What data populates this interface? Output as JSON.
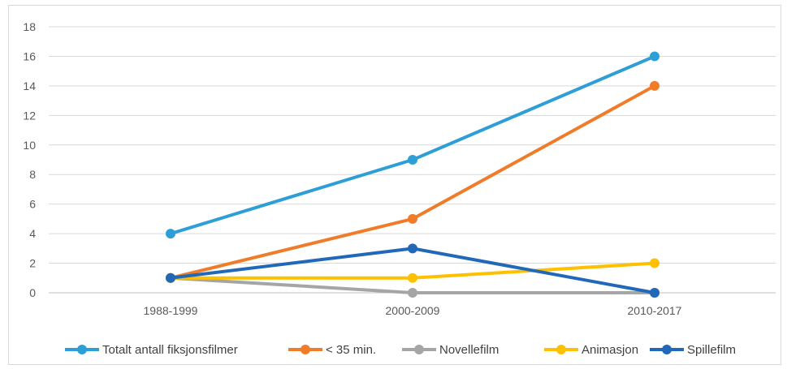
{
  "chart_data": {
    "type": "line",
    "title": "",
    "xlabel": "",
    "ylabel": "",
    "categories": [
      "1988-1999",
      "2000-2009",
      "2010-2017"
    ],
    "ylim": [
      0,
      18
    ],
    "yticks": [
      0,
      2,
      4,
      6,
      8,
      10,
      12,
      14,
      16,
      18
    ],
    "grid": "horizontal",
    "legend": "bottom",
    "series": [
      {
        "name": "Totalt antall fiksjonsfilmer",
        "color": "#2E9FD6",
        "values": [
          4,
          9,
          16
        ]
      },
      {
        "name": "< 35 min.",
        "color": "#F07C2A",
        "values": [
          1,
          5,
          14
        ]
      },
      {
        "name": "Novellefilm",
        "color": "#A5A5A5",
        "values": [
          1,
          0,
          0
        ]
      },
      {
        "name": "Animasjon",
        "color": "#FFC000",
        "values": [
          1,
          1,
          2
        ]
      },
      {
        "name": "Spillefilm",
        "color": "#2169B8",
        "values": [
          1,
          3,
          0
        ]
      }
    ]
  }
}
